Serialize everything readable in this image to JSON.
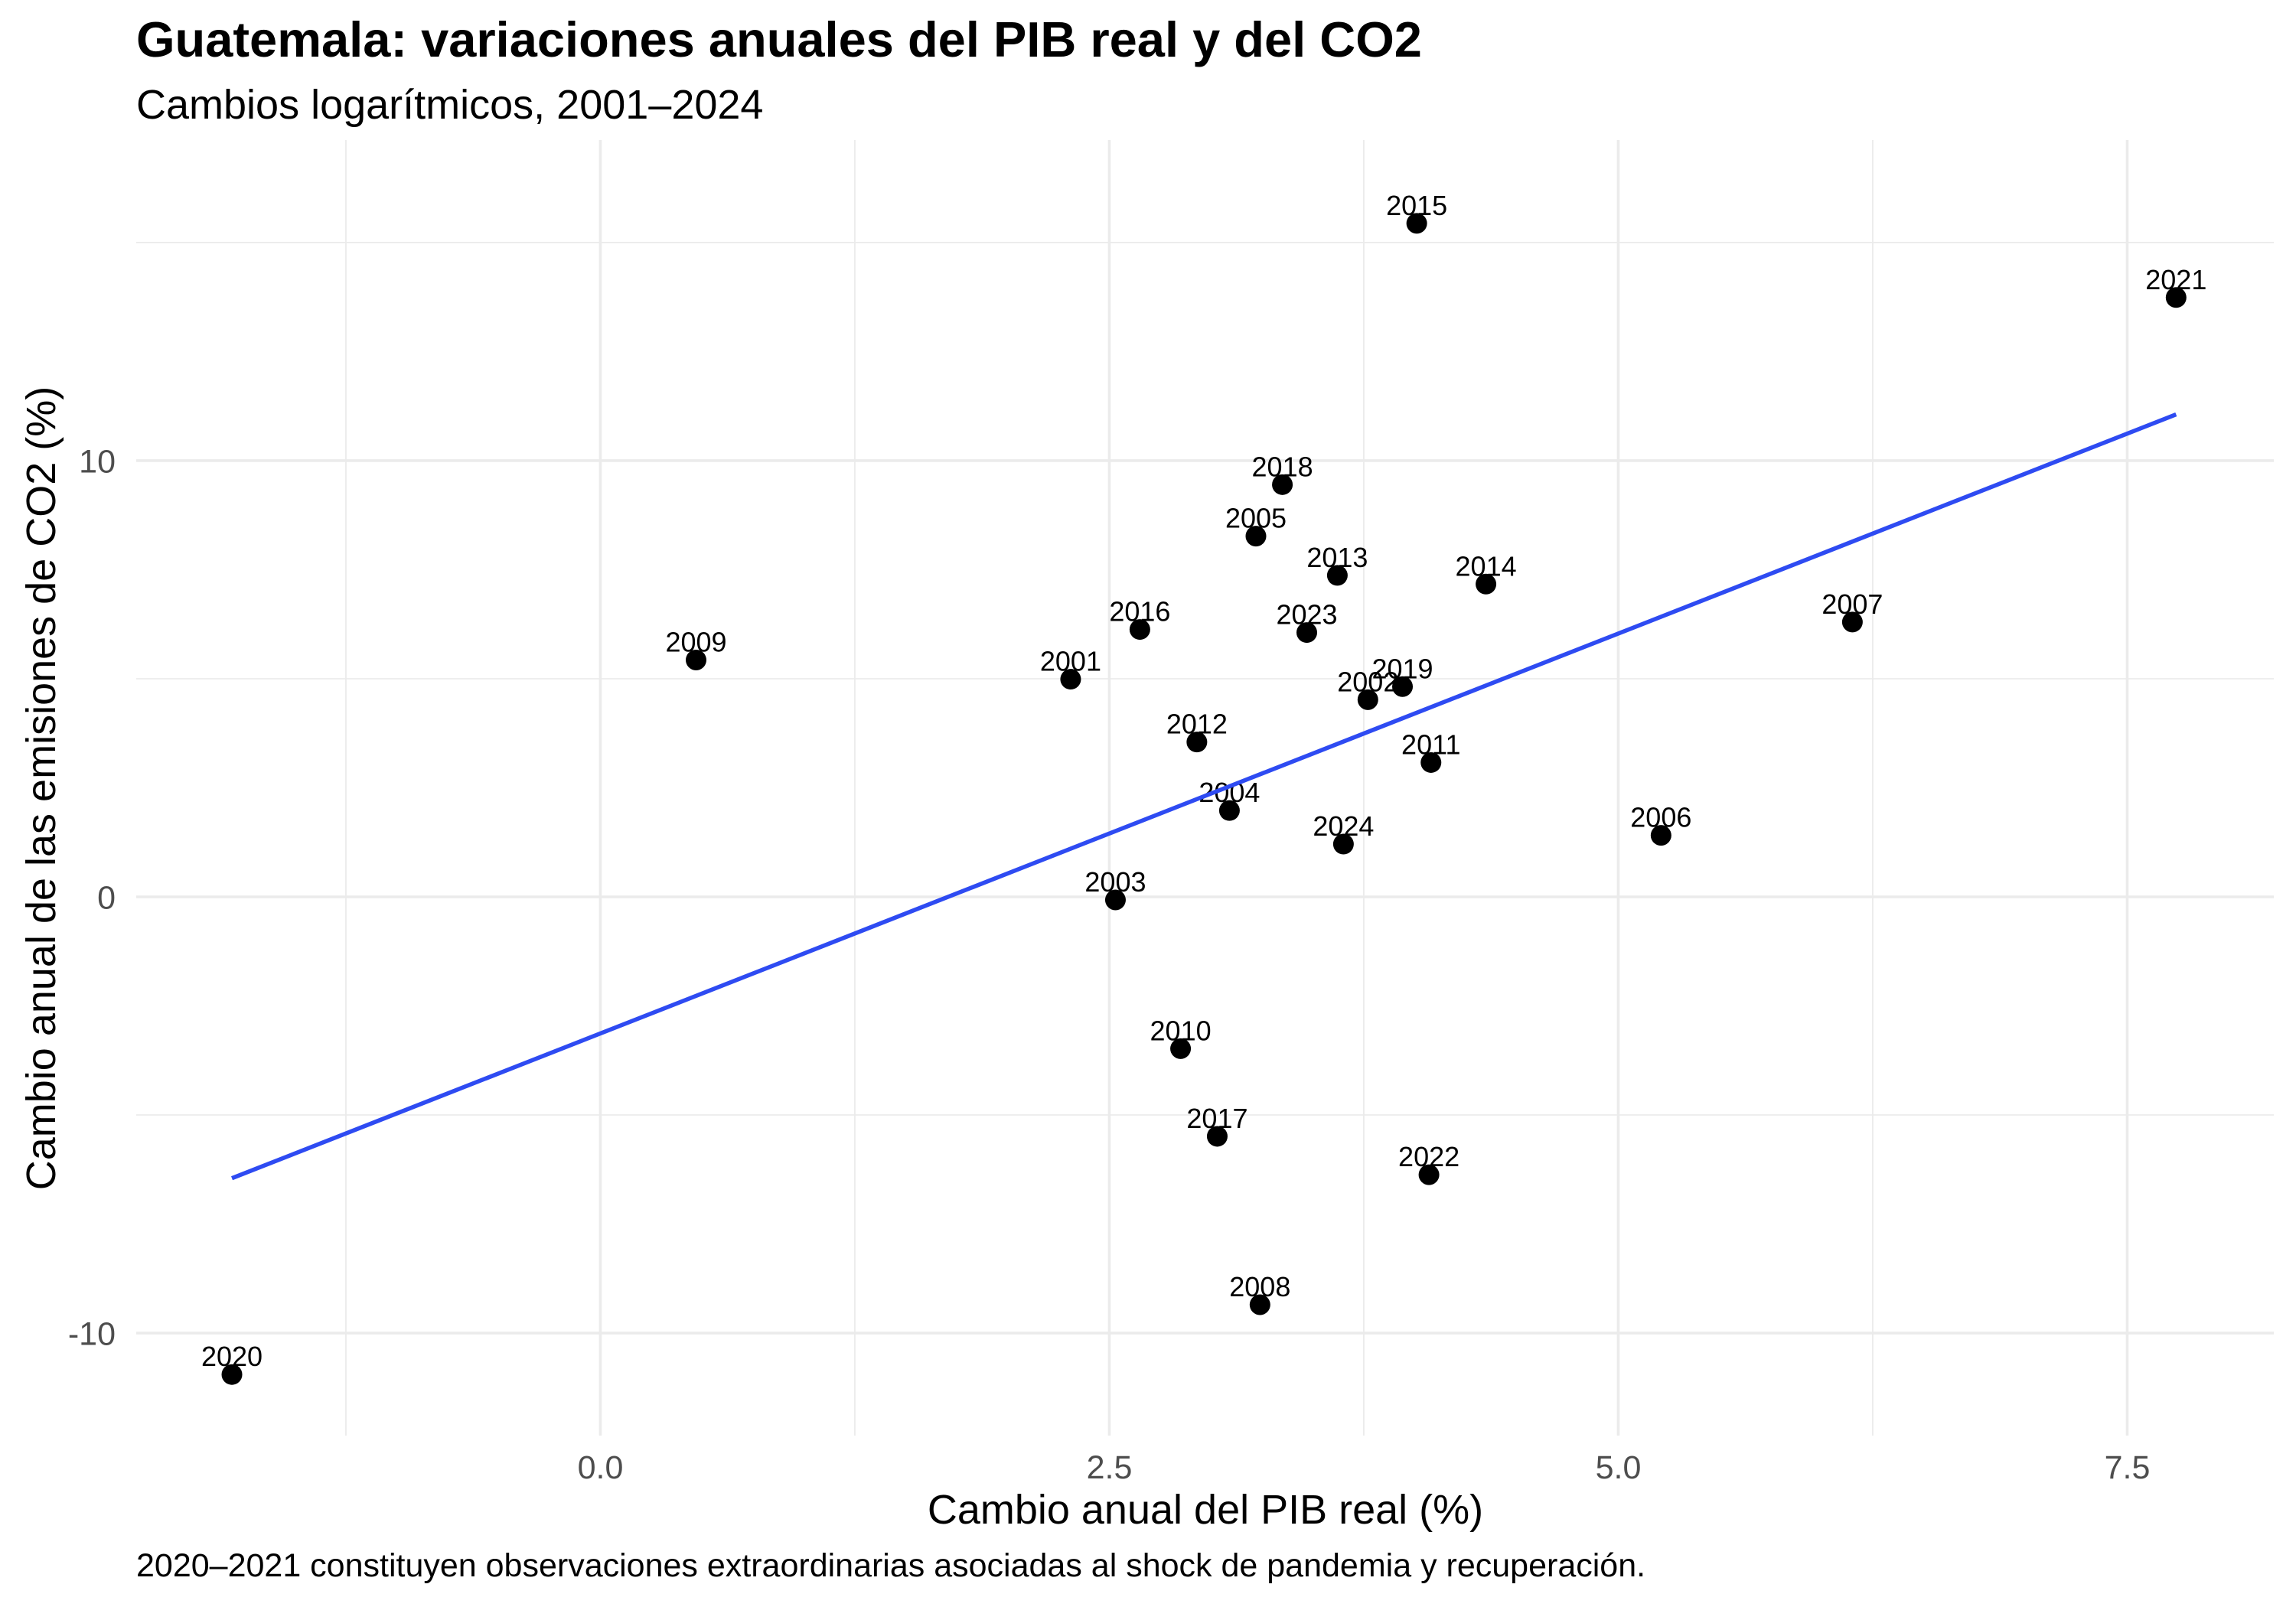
{
  "chart_data": {
    "type": "scatter",
    "title": "Guatemala: variaciones anuales del PIB real y del CO2",
    "subtitle": "Cambios logarítmicos, 2001–2024",
    "xlabel": "Cambio anual del PIB real (%)",
    "ylabel": "Cambio anual de las emisiones de CO2 (%)",
    "caption": "2020–2021 constituyen observaciones extraordinarias asociadas al shock de pandemia y recuperación.",
    "xlim": [
      -2.28,
      8.22
    ],
    "ylim": [
      -12.35,
      17.35
    ],
    "x_ticks": [
      {
        "value": 0,
        "label": "0.0"
      },
      {
        "value": 2.5,
        "label": "2.5"
      },
      {
        "value": 5,
        "label": "5.0"
      },
      {
        "value": 7.5,
        "label": "7.5"
      }
    ],
    "y_ticks": [
      {
        "value": -10,
        "label": "-10"
      },
      {
        "value": 0,
        "label": "0"
      },
      {
        "value": 10,
        "label": "10"
      }
    ],
    "grid": true,
    "minor_grid": true,
    "points": [
      {
        "label": "2001",
        "x": 2.31,
        "y": 4.99
      },
      {
        "label": "2002",
        "x": 3.77,
        "y": 4.52
      },
      {
        "label": "2003",
        "x": 2.53,
        "y": -0.07
      },
      {
        "label": "2004",
        "x": 3.09,
        "y": 1.98
      },
      {
        "label": "2005",
        "x": 3.22,
        "y": 8.27
      },
      {
        "label": "2006",
        "x": 5.21,
        "y": 1.41
      },
      {
        "label": "2007",
        "x": 6.15,
        "y": 6.3
      },
      {
        "label": "2008",
        "x": 3.24,
        "y": -9.35
      },
      {
        "label": "2009",
        "x": 0.47,
        "y": 5.43
      },
      {
        "label": "2010",
        "x": 2.85,
        "y": -3.48
      },
      {
        "label": "2011",
        "x": 4.08,
        "y": 3.08
      },
      {
        "label": "2012",
        "x": 2.93,
        "y": 3.55
      },
      {
        "label": "2013",
        "x": 3.62,
        "y": 7.37
      },
      {
        "label": "2014",
        "x": 4.35,
        "y": 7.17
      },
      {
        "label": "2015",
        "x": 4.01,
        "y": 15.44
      },
      {
        "label": "2016",
        "x": 2.65,
        "y": 6.13
      },
      {
        "label": "2017",
        "x": 3.03,
        "y": -5.49
      },
      {
        "label": "2018",
        "x": 3.35,
        "y": 9.45
      },
      {
        "label": "2019",
        "x": 3.94,
        "y": 4.82
      },
      {
        "label": "2020",
        "x": -1.81,
        "y": -10.95
      },
      {
        "label": "2021",
        "x": 7.74,
        "y": 13.74
      },
      {
        "label": "2022",
        "x": 4.07,
        "y": -6.37
      },
      {
        "label": "2023",
        "x": 3.47,
        "y": 6.06
      },
      {
        "label": "2024",
        "x": 3.65,
        "y": 1.21
      }
    ],
    "fit_line": {
      "x": [
        -1.81,
        7.74
      ],
      "y": [
        -6.45,
        11.06
      ]
    },
    "colors": {
      "background": "#FFFFFF",
      "points": "#000000",
      "point_labels": "#000000",
      "fit_line": "#2E4BF2",
      "grid": "#EBEBEB",
      "axis_text": "#4D4D4D",
      "text": "#000000"
    }
  }
}
